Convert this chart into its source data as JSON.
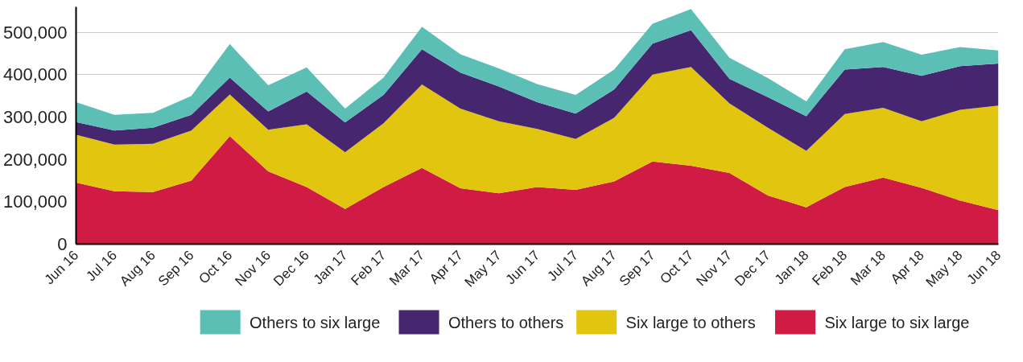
{
  "chart_data": {
    "type": "area",
    "stacked": true,
    "categories": [
      "Jun 16",
      "Jul 16",
      "Aug 16",
      "Sep 16",
      "Oct 16",
      "Nov 16",
      "Dec 16",
      "Jan 17",
      "Feb 17",
      "Mar 17",
      "Apr 17",
      "May 17",
      "Jun 17",
      "Jul 17",
      "Aug 17",
      "Sep 17",
      "Oct 17",
      "Nov 17",
      "Dec 17",
      "Jan 18",
      "Feb 18",
      "Mar 18",
      "Apr 18",
      "May 18",
      "Jun 18"
    ],
    "series": [
      {
        "name": "Six large to six large",
        "color": "#d01c45",
        "values": [
          145000,
          125000,
          123000,
          150000,
          255000,
          172000,
          135000,
          83000,
          135000,
          180000,
          132000,
          120000,
          135000,
          128000,
          148000,
          195000,
          185000,
          168000,
          115000,
          87000,
          135000,
          157000,
          133000,
          103000,
          80000
        ]
      },
      {
        "name": "Six large to others",
        "color": "#e2c50e",
        "values": [
          113000,
          110000,
          114000,
          118000,
          98000,
          98000,
          148000,
          134000,
          150000,
          197000,
          188000,
          170000,
          137000,
          120000,
          150000,
          205000,
          233000,
          164000,
          160000,
          133000,
          172000,
          165000,
          157000,
          214000,
          247000
        ]
      },
      {
        "name": "Others to others",
        "color": "#46276f",
        "values": [
          30000,
          33000,
          38000,
          37000,
          40000,
          43000,
          77000,
          70000,
          67000,
          83000,
          85000,
          82000,
          63000,
          60000,
          67000,
          73000,
          87000,
          58000,
          72000,
          82000,
          105000,
          96000,
          107000,
          103000,
          99000
        ]
      },
      {
        "name": "Others to six large",
        "color": "#5bbfb5",
        "values": [
          47000,
          37000,
          35000,
          45000,
          79000,
          62000,
          57000,
          33000,
          41000,
          53000,
          43000,
          43000,
          43000,
          44000,
          47000,
          47000,
          50000,
          50000,
          45000,
          35000,
          48000,
          59000,
          50000,
          45000,
          31000
        ]
      }
    ],
    "ylim": [
      0,
      560000
    ],
    "yticks": [
      {
        "value": 0,
        "label": "0"
      },
      {
        "value": 100000,
        "label": "100,000"
      },
      {
        "value": 200000,
        "label": "200,000"
      },
      {
        "value": 300000,
        "label": "300,000"
      },
      {
        "value": 400000,
        "label": "400,000"
      },
      {
        "value": 500000,
        "label": "500,000"
      }
    ],
    "grid": "y",
    "legend": "bottom"
  }
}
